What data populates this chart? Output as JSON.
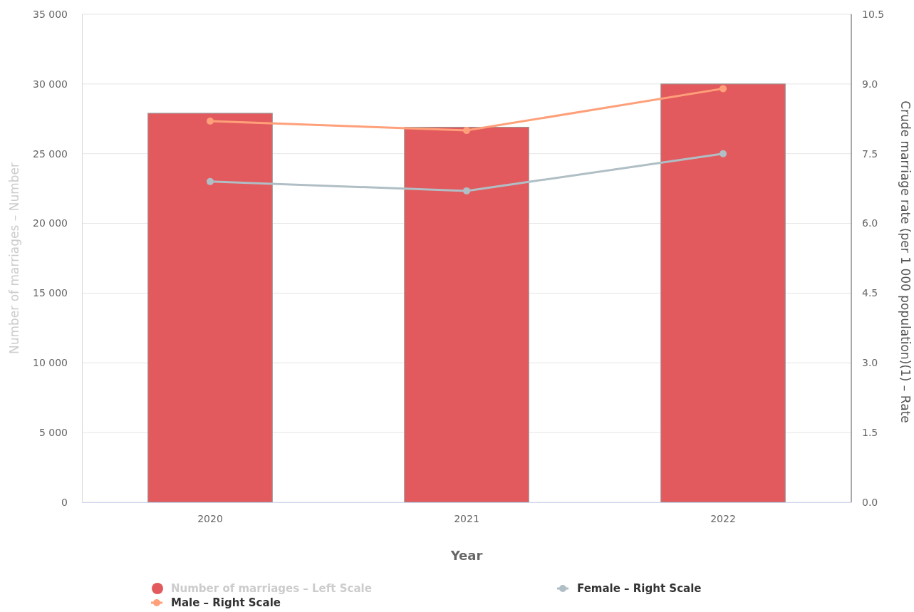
{
  "chart_data": {
    "type": "bar",
    "categories": [
      "2020",
      "2021",
      "2022"
    ],
    "series": [
      {
        "name": "Number of marriages – Left Scale",
        "color": "#e25a5d",
        "values": [
          27900,
          26900,
          30000
        ]
      },
      {
        "type": "line",
        "axis": "y2",
        "name": "Female – Right Scale",
        "color": "#b0bec5",
        "values": [
          6.9,
          6.7,
          7.5
        ]
      },
      {
        "type": "line",
        "axis": "y2",
        "name": "Male – Right Scale",
        "color": "#ffa07a",
        "values": [
          8.2,
          8.0,
          8.9
        ]
      }
    ],
    "xlabel": "Year",
    "ylabel": "Number of marriages – Number",
    "y2label": "Crude marriage rate (per 1 000 population)(1) – Rate",
    "ylim": [
      0,
      35000
    ],
    "yticks": [
      {
        "value": 0,
        "label": "0"
      },
      {
        "value": 5000,
        "label": "5 000"
      },
      {
        "value": 10000,
        "label": "10 000"
      },
      {
        "value": 15000,
        "label": "15 000"
      },
      {
        "value": 20000,
        "label": "20 000"
      },
      {
        "value": 25000,
        "label": "25 000"
      },
      {
        "value": 30000,
        "label": "30 000"
      },
      {
        "value": 35000,
        "label": "35 000"
      }
    ],
    "y2lim": [
      0,
      10.5
    ],
    "y2ticks": [
      {
        "value": 0,
        "label": "0.0"
      },
      1.5,
      {
        "value": 3,
        "label": "3.0"
      },
      4.5,
      {
        "value": 6,
        "label": "6.0"
      },
      7.5,
      {
        "value": 9,
        "label": "9.0"
      },
      10.5
    ],
    "grid": "y",
    "legend": "bottom",
    "marker": "circle"
  }
}
